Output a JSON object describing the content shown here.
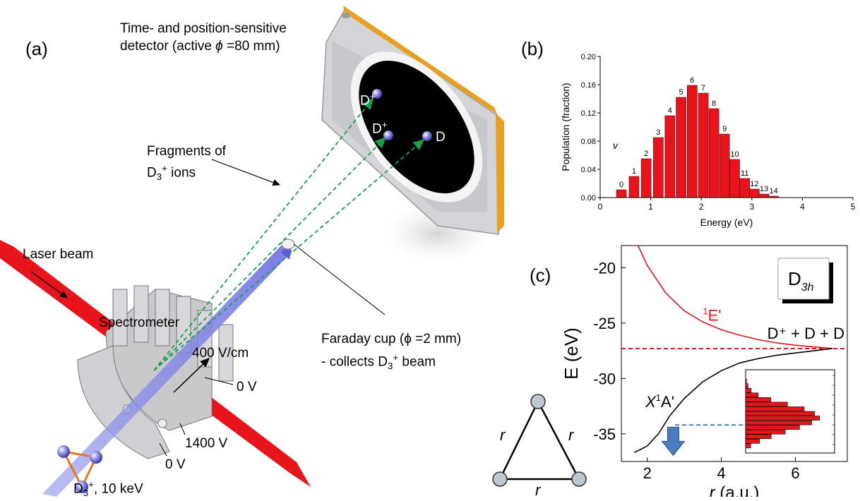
{
  "panel_a": {
    "label": "(a)",
    "detector_title_1": "Time- and position-sensitive",
    "detector_title_2_prefix": "detector (active ",
    "detector_phi": "ϕ",
    "detector_title_2_suffix": " =80 mm)",
    "fragments_line1": "Fragments of",
    "fragments_line2_D": "D",
    "fragments_line2_sub": "3",
    "fragments_line2_sup": "+",
    "fragments_line2_rest": " ions",
    "laser_label": "Laser beam",
    "spectrometer_label": "Spectrometer",
    "faraday_line1": "Faraday cup (ϕ =2 mm)",
    "faraday_line2_prefix": "- collects D",
    "faraday_line2_sub": "3",
    "faraday_line2_sup": "+",
    "faraday_line2_suffix": " beam",
    "field_label": "400 V/cm",
    "v0_right": "0 V",
    "v1400": "1400 V",
    "v0_bottom": "0 V",
    "beam_prefix": "D",
    "beam_sub": "3",
    "beam_sup": "+",
    "beam_suffix": ", 10 keV",
    "frag_Dplus_1": "D",
    "frag_Dplus_1_sup": "+",
    "frag_Dplus_2": "D",
    "frag_Dplus_2_sup": "+",
    "frag_D": "D",
    "colors": {
      "laser": "#e8141c",
      "beam": "#7b7fe6",
      "trajectory": "#1aa04a",
      "detector_frame": "#e8a020",
      "atom": "#9a9ae8"
    }
  },
  "panel_b": {
    "label": "(b)"
  },
  "panel_c": {
    "label": "(c)",
    "ylabel": "E (eV)",
    "xlabel_r": "r",
    "xlabel_rest": " (a.u.)",
    "symmetry_box": "D",
    "symmetry_sub": "3h",
    "state_upper": "E'",
    "state_upper_sup": "1",
    "state_lower_X": "X",
    "state_lower_sup": "1",
    "state_lower_rest": "A'",
    "asymptote_label": "D⁺ + D + D",
    "triangle_side": "r",
    "colors": {
      "upper_curve": "#e8141c",
      "lower_curve": "#000000",
      "asymptote": "#e8141c",
      "arrow": "#4a7ec0",
      "hist": "#e8141c"
    }
  },
  "chart_data": [
    {
      "type": "bar",
      "panel": "(b)",
      "xlabel": "Energy (eV)",
      "ylabel": "Population (fraction)",
      "xlim": [
        0,
        5
      ],
      "ylim": [
        0,
        0.2
      ],
      "xticks": [
        "0",
        "1",
        "2",
        "3",
        "4",
        "5"
      ],
      "yticks": [
        "0.00",
        "0.04",
        "0.08",
        "0.12",
        "0.16",
        "0.20"
      ],
      "annotation": "v",
      "bar_color": "#e8141c",
      "bars": [
        {
          "label": "0",
          "x": 0.42,
          "y": 0.011
        },
        {
          "label": "1",
          "x": 0.67,
          "y": 0.03
        },
        {
          "label": "2",
          "x": 0.91,
          "y": 0.055
        },
        {
          "label": "3",
          "x": 1.15,
          "y": 0.085
        },
        {
          "label": "4",
          "x": 1.38,
          "y": 0.116
        },
        {
          "label": "5",
          "x": 1.6,
          "y": 0.142
        },
        {
          "label": "6",
          "x": 1.82,
          "y": 0.159
        },
        {
          "label": "7",
          "x": 2.04,
          "y": 0.148
        },
        {
          "label": "8",
          "x": 2.25,
          "y": 0.126
        },
        {
          "label": "9",
          "x": 2.46,
          "y": 0.09
        },
        {
          "label": "10",
          "x": 2.66,
          "y": 0.054
        },
        {
          "label": "11",
          "x": 2.86,
          "y": 0.027
        },
        {
          "label": "12",
          "x": 3.05,
          "y": 0.012
        },
        {
          "label": "13",
          "x": 3.24,
          "y": 0.005
        },
        {
          "label": "14",
          "x": 3.43,
          "y": 0.002
        }
      ]
    },
    {
      "type": "line",
      "panel": "(c)",
      "xlabel": "r (a.u.)",
      "ylabel": "E (eV)",
      "xlim": [
        1.3,
        7.4
      ],
      "ylim": [
        -37.5,
        -18
      ],
      "xticks": [
        "2",
        "4",
        "6"
      ],
      "yticks": [
        "-20",
        "-25",
        "-30",
        "-35"
      ],
      "asymptote": -27.3,
      "series": [
        {
          "name": "1E'",
          "x": [
            1.75,
            2.0,
            2.5,
            3.0,
            3.5,
            4.0,
            4.5,
            5.0,
            5.5,
            6.0,
            6.5,
            7.0
          ],
          "y": [
            -18.0,
            -19.8,
            -22.3,
            -23.9,
            -24.9,
            -25.6,
            -26.1,
            -26.5,
            -26.8,
            -27.0,
            -27.15,
            -27.3
          ]
        },
        {
          "name": "X1A'",
          "x": [
            1.65,
            2.0,
            2.3,
            2.6,
            3.0,
            3.5,
            4.0,
            4.5,
            5.0,
            5.5,
            6.0,
            6.5,
            7.0
          ],
          "y": [
            -36.7,
            -36.1,
            -35.0,
            -33.4,
            -31.8,
            -30.3,
            -29.3,
            -28.6,
            -28.2,
            -27.9,
            -27.7,
            -27.5,
            -27.3
          ]
        }
      ]
    }
  ]
}
